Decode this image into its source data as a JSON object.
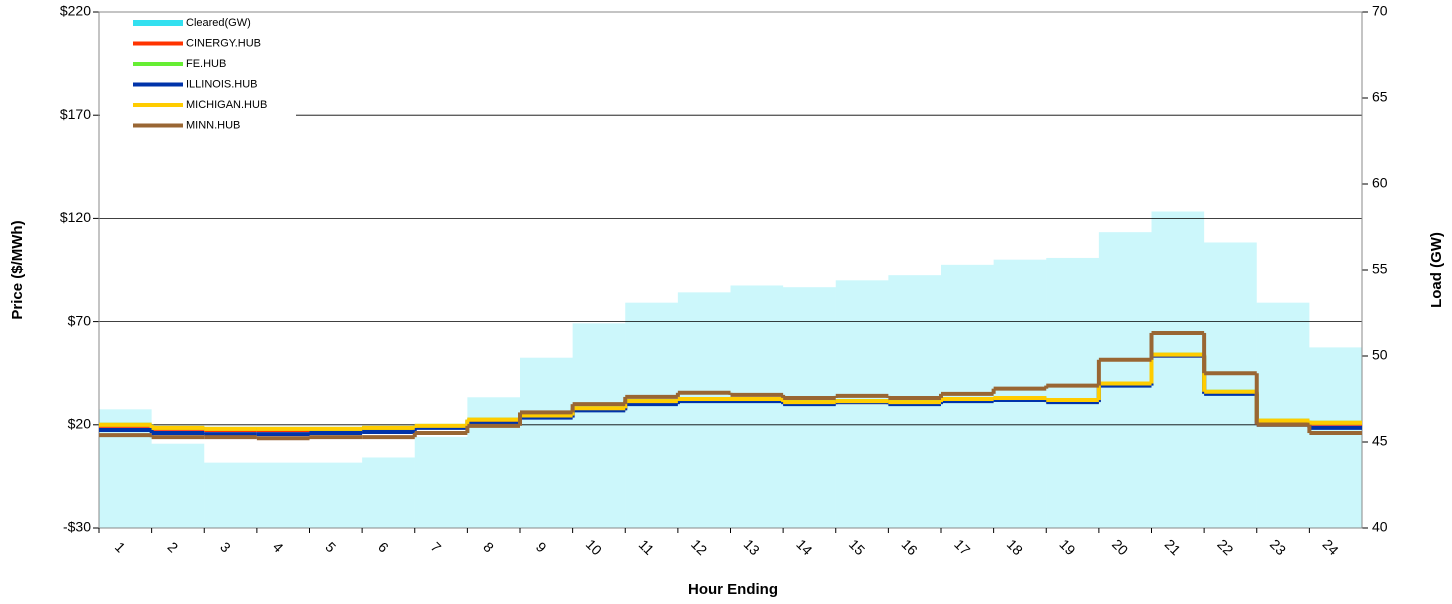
{
  "chart_data": {
    "type": "step-line",
    "x_label": "Hour Ending",
    "y_label": "Price ($/MWh)",
    "y2_label": "Load (GW)",
    "categories": [
      "1",
      "2",
      "3",
      "4",
      "5",
      "6",
      "7",
      "8",
      "9",
      "10",
      "11",
      "12",
      "13",
      "14",
      "15",
      "16",
      "17",
      "18",
      "19",
      "20",
      "21",
      "22",
      "23",
      "24"
    ],
    "ylim": [
      -30,
      220
    ],
    "yticks": [
      {
        "value": -30,
        "label": "-$30"
      },
      {
        "value": 20,
        "label": "$20"
      },
      {
        "value": 70,
        "label": "$70"
      },
      {
        "value": 120,
        "label": "$120"
      },
      {
        "value": 170,
        "label": "$170"
      },
      {
        "value": 220,
        "label": "$220"
      }
    ],
    "y2lim": [
      40,
      70
    ],
    "y2ticks": [
      40,
      45,
      50,
      55,
      60,
      65,
      70
    ],
    "grid": true,
    "legend": "upper-left",
    "series": [
      {
        "name": "Cleared(GW)",
        "color": "#33e0f0",
        "axis": "y2",
        "type": "bar",
        "values": [
          46.9,
          44.9,
          43.8,
          43.8,
          43.8,
          44.1,
          45.3,
          47.6,
          49.9,
          51.9,
          53.1,
          53.7,
          54.1,
          54.0,
          54.4,
          54.7,
          55.3,
          55.6,
          55.7,
          57.2,
          58.4,
          56.6,
          53.1,
          50.5
        ]
      },
      {
        "name": "CINERGY.HUB",
        "color": "#ff3300",
        "values": [
          19.5,
          18,
          17.5,
          17.5,
          17.5,
          18,
          19,
          22,
          24,
          27.5,
          31,
          32,
          32,
          30.5,
          31,
          30.5,
          32,
          32.5,
          31.5,
          39.5,
          53.5,
          35.5,
          21.5,
          20.5
        ]
      },
      {
        "name": "FE.HUB",
        "color": "#66ee33",
        "values": [
          20,
          18.5,
          18,
          18,
          18,
          18.5,
          19.5,
          22.5,
          24.5,
          28,
          31.5,
          32.5,
          32.5,
          31,
          31.5,
          31,
          32.5,
          33,
          32,
          40,
          54,
          36,
          22,
          21
        ]
      },
      {
        "name": "ILLINOIS.HUB",
        "color": "#0033aa",
        "values": [
          17.5,
          16,
          15.5,
          15.5,
          16,
          16.5,
          18.5,
          20.5,
          23.5,
          27,
          30,
          31.5,
          31.5,
          30,
          31,
          30,
          31.5,
          32,
          31,
          39,
          53.5,
          35,
          20,
          18.5
        ]
      },
      {
        "name": "MICHIGAN.HUB",
        "color": "#ffcc00",
        "values": [
          20,
          18.5,
          18,
          18,
          18,
          18.5,
          19.5,
          22.5,
          24.5,
          28,
          31.5,
          32.5,
          32.5,
          31,
          31.5,
          31,
          32.5,
          33,
          32,
          40,
          54,
          36,
          22,
          21
        ]
      },
      {
        "name": "MINN.HUB",
        "color": "#996633",
        "values": [
          15,
          14,
          14,
          13.5,
          14,
          14,
          16,
          19.5,
          26,
          30,
          33.5,
          35.5,
          34.5,
          33,
          34,
          33,
          35,
          37.5,
          39,
          51.5,
          64.5,
          45,
          20,
          16
        ]
      }
    ]
  }
}
